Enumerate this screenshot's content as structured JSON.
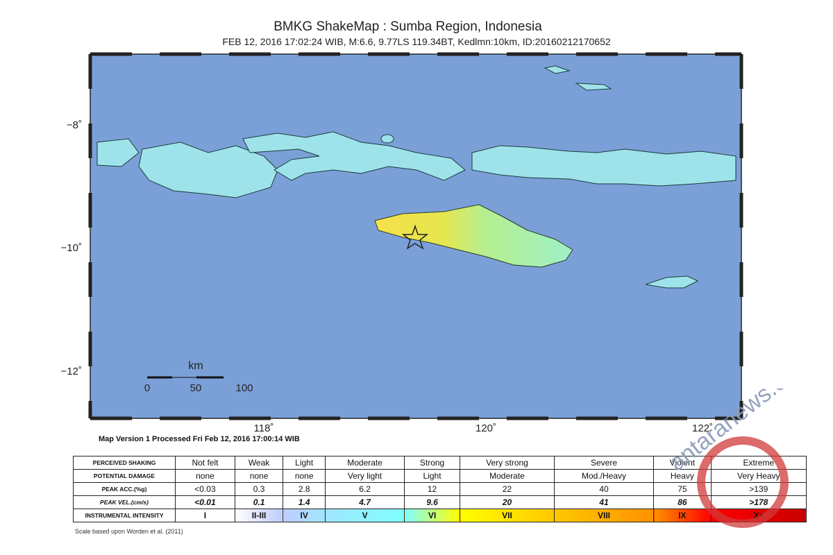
{
  "header": {
    "title": "BMKG ShakeMap : Sumba Region, Indonesia",
    "subtitle": "FEB 12, 2016 17:02:24 WIB, M:6.6, 9.77LS 119.34BT, Kedlmn:10km, ID:20160212170652"
  },
  "map": {
    "lat_labels": [
      "−8˚",
      "−10˚",
      "−12˚"
    ],
    "lon_labels": [
      "118˚",
      "120˚",
      "122˚"
    ],
    "scale": {
      "unit": "km",
      "labels": [
        "0",
        "50",
        "100"
      ]
    }
  },
  "processed": "Map Version 1 Processed Fri Feb 12, 2016 17:00:14 WIB",
  "table": {
    "rows": [
      [
        "PERCEIVED SHAKING",
        "Not felt",
        "Weak",
        "Light",
        "Moderate",
        "Strong",
        "Very strong",
        "Severe",
        "Violent",
        "Extreme"
      ],
      [
        "POTENTIAL DAMAGE",
        "none",
        "none",
        "none",
        "Very light",
        "Light",
        "Moderate",
        "Mod./Heavy",
        "Heavy",
        "Very Heavy"
      ],
      [
        "PEAK ACC.(%g)",
        "<0.03",
        "0.3",
        "2.8",
        "6.2",
        "12",
        "22",
        "40",
        "75",
        ">139"
      ],
      [
        "PEAK VEL.(cm/s)",
        "<0.01",
        "0.1",
        "1.4",
        "4.7",
        "9.6",
        "20",
        "41",
        "86",
        ">178"
      ],
      [
        "INSTRUMENTAL INTENSITY",
        "I",
        "II-III",
        "IV",
        "V",
        "VI",
        "VII",
        "VIII",
        "IX",
        "X+"
      ]
    ]
  },
  "note": "Scale based upon Worden et al. (2011)",
  "watermark": "antaranews.com"
}
